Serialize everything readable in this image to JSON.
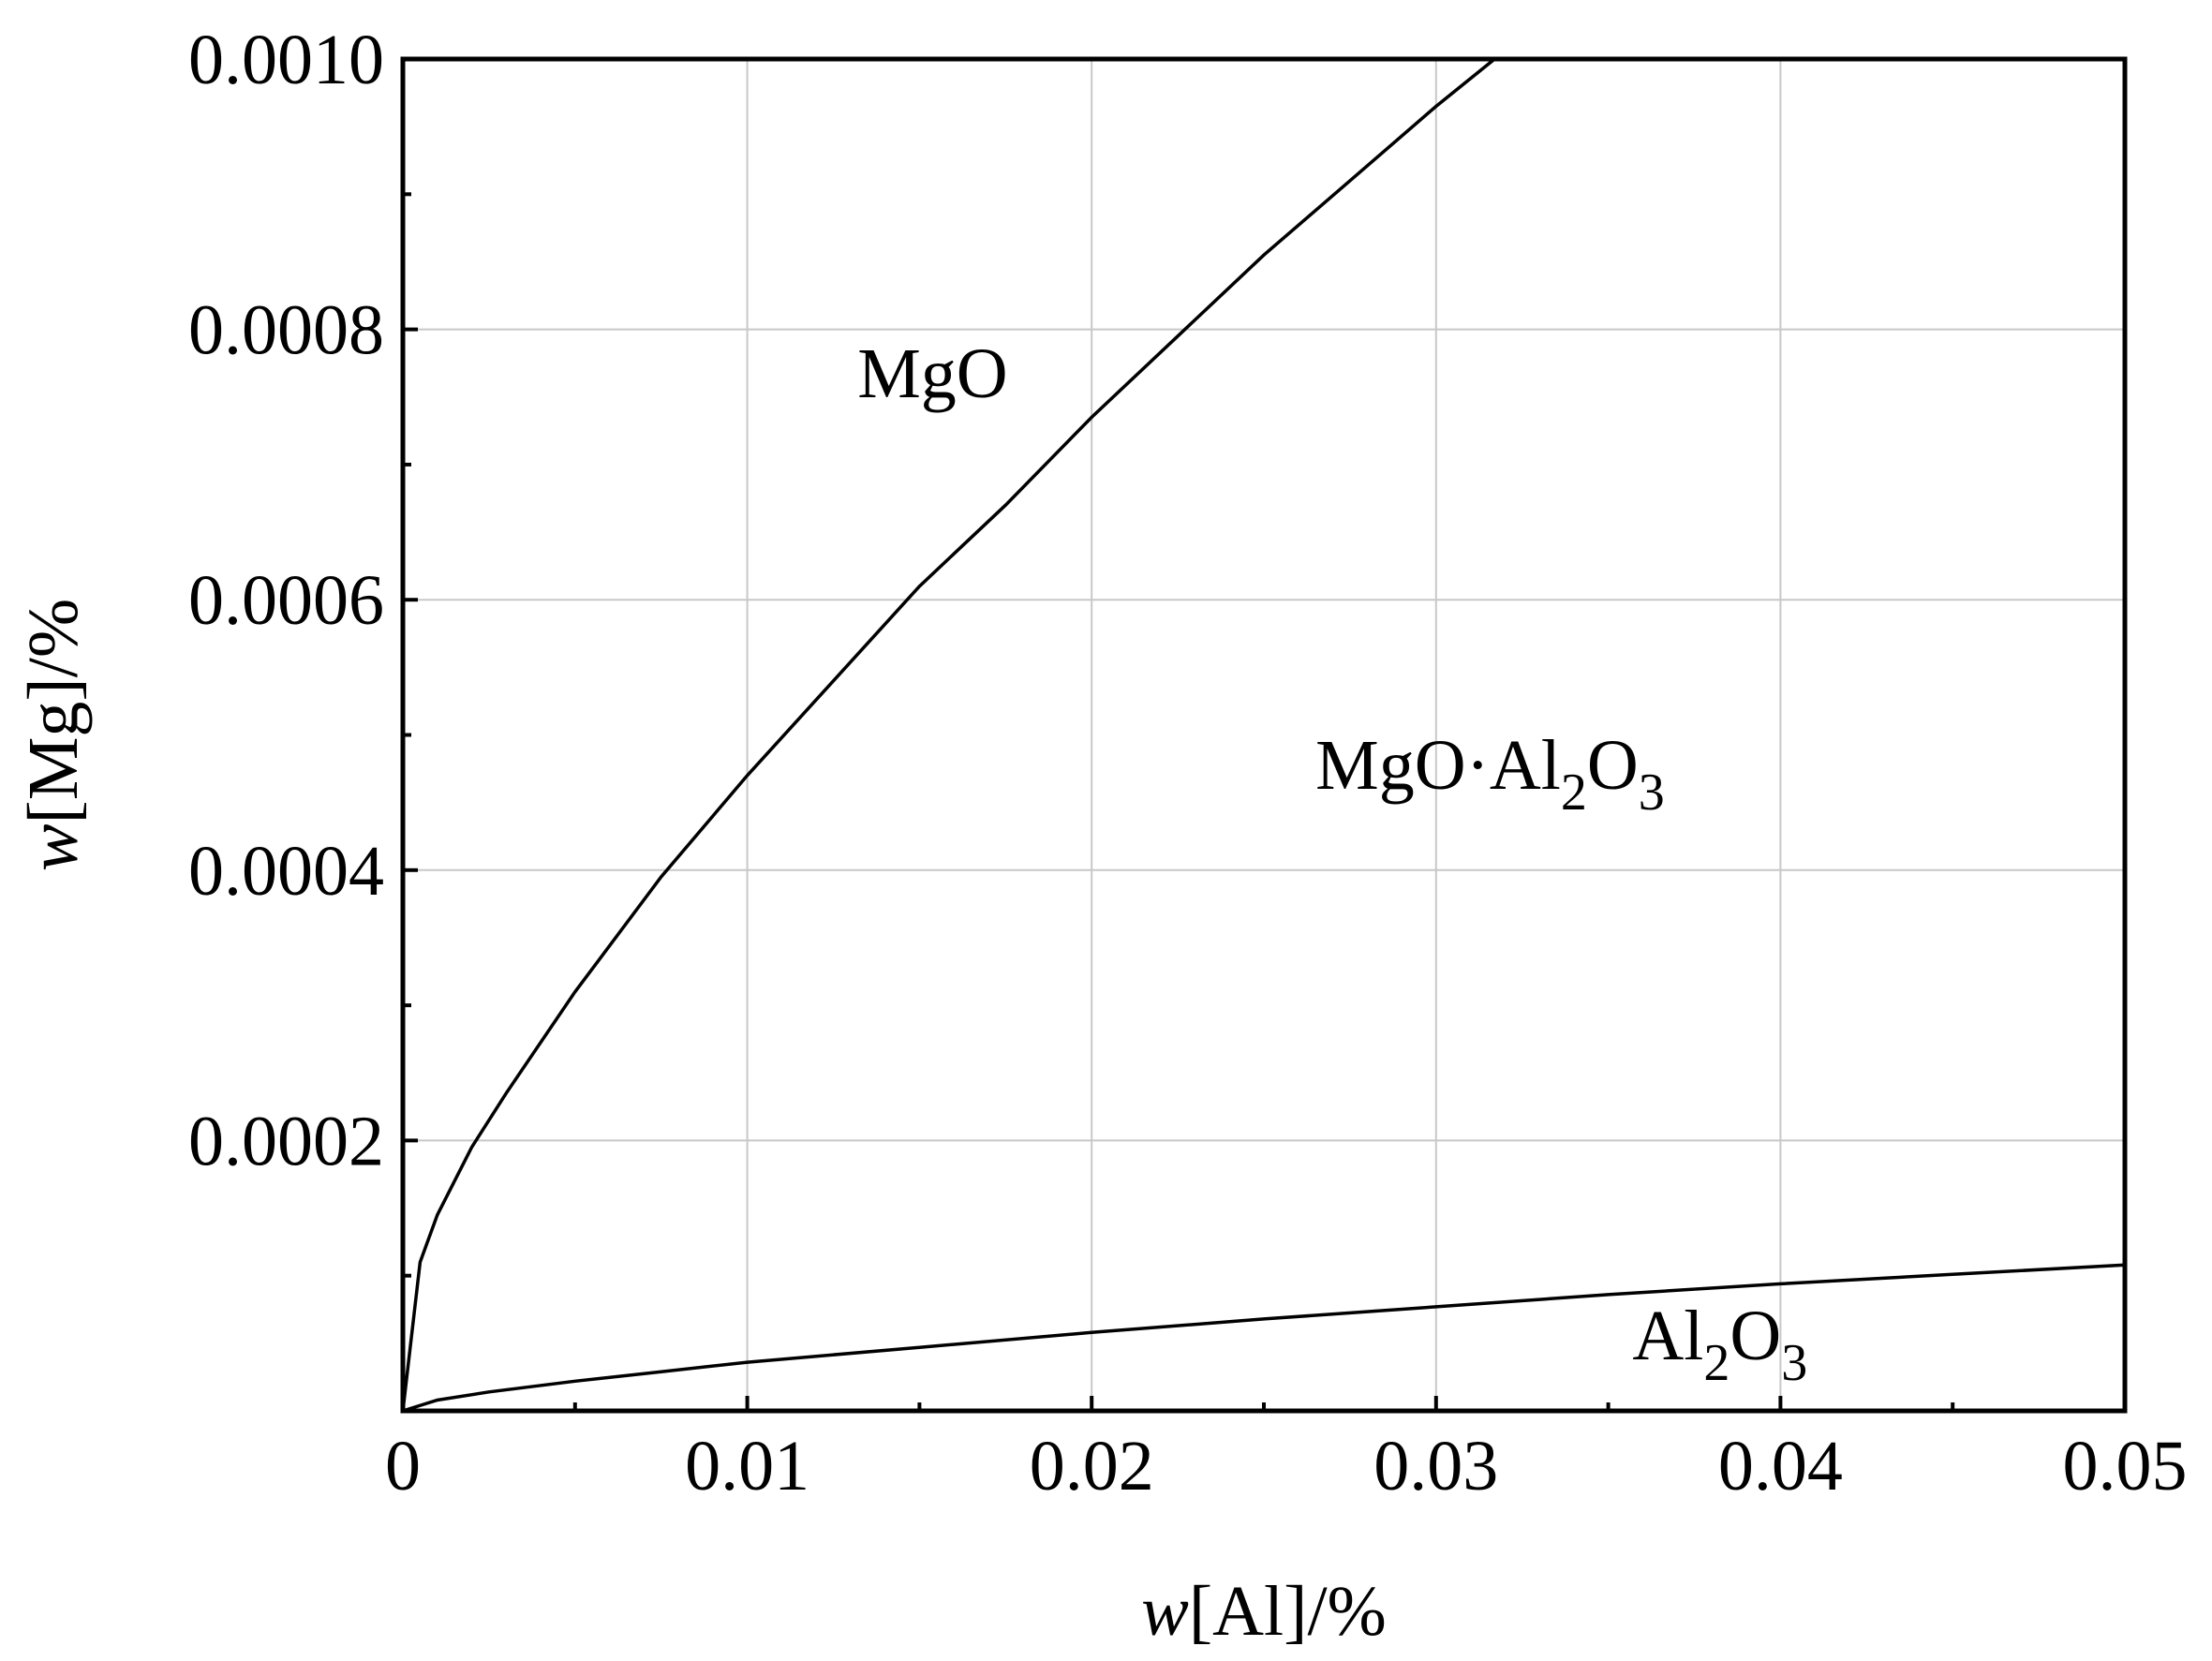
{
  "chart_data": {
    "type": "line",
    "xlabel": {
      "italic": "w",
      "rest": "[Al]/%"
    },
    "ylabel": {
      "italic": "w",
      "rest": "[Mg]/%"
    },
    "xlim": [
      0,
      0.05
    ],
    "ylim": [
      0,
      0.001
    ],
    "x_ticks": [
      0,
      0.01,
      0.02,
      0.03,
      0.04,
      0.05
    ],
    "x_tick_labels": [
      "0",
      "0.01",
      "0.02",
      "0.03",
      "0.04",
      "0.05"
    ],
    "y_ticks": [
      0.0002,
      0.0004,
      0.0006,
      0.0008,
      0.001
    ],
    "y_tick_labels": [
      "0.0002",
      "0.0004",
      "0.0006",
      "0.0008",
      "0.0010"
    ],
    "grid": true,
    "series": [
      {
        "x": [
          0,
          0.0005,
          0.001,
          0.002,
          0.003,
          0.005,
          0.0075,
          0.01,
          0.0125,
          0.015,
          0.0175,
          0.02,
          0.0225,
          0.025,
          0.0275,
          0.03,
          0.0317
        ],
        "y": [
          0,
          0.00011,
          0.000145,
          0.000195,
          0.000235,
          0.00031,
          0.000395,
          0.00047,
          0.00054,
          0.00061,
          0.00067,
          0.000735,
          0.000795,
          0.000855,
          0.00091,
          0.000965,
          0.001
        ]
      },
      {
        "x": [
          0,
          0.001,
          0.0025,
          0.005,
          0.0075,
          0.01,
          0.015,
          0.02,
          0.025,
          0.03,
          0.035,
          0.04,
          0.045,
          0.05
        ],
        "y": [
          0,
          8e-06,
          1.4e-05,
          2.2e-05,
          2.9e-05,
          3.6e-05,
          4.7e-05,
          5.8e-05,
          6.8e-05,
          7.7e-05,
          8.6e-05,
          9.4e-05,
          0.000101,
          0.000108
        ]
      }
    ],
    "annotations": [
      {
        "id": "mgo",
        "text": "MgO",
        "x": 0.0132,
        "y": 0.00075
      },
      {
        "id": "spinel",
        "main": "MgO·Al",
        "sub1": "2",
        "mid": "O",
        "sub2": "3",
        "x": 0.0265,
        "y": 0.00046
      },
      {
        "id": "al2o3",
        "main": "Al",
        "sub1": "2",
        "mid": "O",
        "sub2": "3",
        "x": 0.0357,
        "y": 3.8e-05
      }
    ]
  }
}
